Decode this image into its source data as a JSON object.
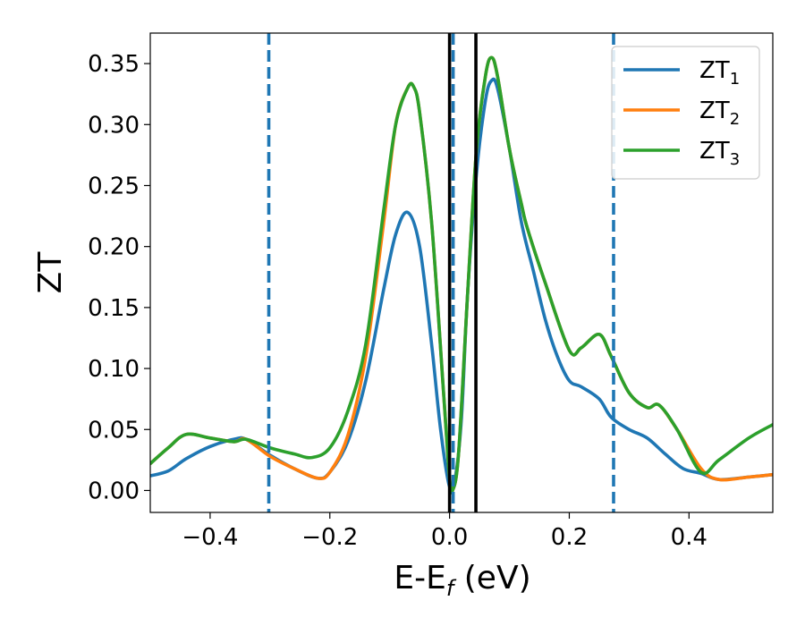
{
  "chart_data": {
    "type": "line",
    "xlabel": {
      "main": "E-E",
      "sub": "f",
      "unit": " (eV)"
    },
    "ylabel": "ZT",
    "xlim": [
      -0.5,
      0.54
    ],
    "ylim": [
      -0.018,
      0.375
    ],
    "xticks": [
      -0.4,
      -0.2,
      0.0,
      0.2,
      0.4
    ],
    "xtick_labels": [
      "−0.4",
      "−0.2",
      "0.0",
      "0.2",
      "0.4"
    ],
    "yticks": [
      0.0,
      0.05,
      0.1,
      0.15,
      0.2,
      0.25,
      0.3,
      0.35
    ],
    "ytick_labels": [
      "0.00",
      "0.05",
      "0.10",
      "0.15",
      "0.20",
      "0.25",
      "0.30",
      "0.35"
    ],
    "grid": false,
    "legend_position": "top-right",
    "series": [
      {
        "name": "ZT",
        "sub": "1",
        "color": "#1f77b4",
        "x": [
          -0.5,
          -0.47,
          -0.44,
          -0.4,
          -0.36,
          -0.34,
          -0.3,
          -0.26,
          -0.22,
          -0.2,
          -0.17,
          -0.14,
          -0.11,
          -0.09,
          -0.07,
          -0.05,
          -0.03,
          -0.015,
          0.0,
          0.01,
          0.02,
          0.03,
          0.045,
          0.06,
          0.07,
          0.08,
          0.1,
          0.12,
          0.14,
          0.16,
          0.18,
          0.2,
          0.22,
          0.25,
          0.27,
          0.3,
          0.33,
          0.36,
          0.39,
          0.42,
          0.45,
          0.5,
          0.54
        ],
        "y": [
          0.012,
          0.016,
          0.026,
          0.036,
          0.042,
          0.042,
          0.029,
          0.018,
          0.01,
          0.015,
          0.04,
          0.09,
          0.165,
          0.21,
          0.228,
          0.2,
          0.12,
          0.05,
          0.003,
          0.012,
          0.06,
          0.16,
          0.26,
          0.32,
          0.336,
          0.33,
          0.28,
          0.22,
          0.18,
          0.14,
          0.11,
          0.09,
          0.085,
          0.075,
          0.06,
          0.05,
          0.043,
          0.03,
          0.018,
          0.014,
          0.009,
          0.011,
          0.013
        ]
      },
      {
        "name": "ZT",
        "sub": "2",
        "color": "#ff7f0e",
        "x": [
          -0.5,
          -0.47,
          -0.44,
          -0.4,
          -0.36,
          -0.34,
          -0.3,
          -0.26,
          -0.22,
          -0.2,
          -0.17,
          -0.14,
          -0.11,
          -0.09,
          -0.07,
          -0.06,
          -0.05,
          -0.03,
          -0.01,
          0.0,
          0.005,
          0.015,
          0.03,
          0.045,
          0.06,
          0.07,
          0.08,
          0.1,
          0.12,
          0.13,
          0.16,
          0.2,
          0.22,
          0.25,
          0.27,
          0.3,
          0.33,
          0.35,
          0.38,
          0.42,
          0.45,
          0.5,
          0.54
        ],
        "y": [
          0.022,
          0.035,
          0.046,
          0.043,
          0.04,
          0.042,
          0.028,
          0.018,
          0.01,
          0.015,
          0.045,
          0.11,
          0.22,
          0.3,
          0.33,
          0.331,
          0.31,
          0.22,
          0.08,
          0.01,
          0.0,
          0.03,
          0.16,
          0.28,
          0.34,
          0.355,
          0.34,
          0.28,
          0.235,
          0.215,
          0.17,
          0.115,
          0.117,
          0.128,
          0.11,
          0.08,
          0.068,
          0.07,
          0.05,
          0.018,
          0.009,
          0.011,
          0.013
        ]
      },
      {
        "name": "ZT",
        "sub": "3",
        "color": "#2ca02c",
        "x": [
          -0.5,
          -0.47,
          -0.44,
          -0.4,
          -0.36,
          -0.34,
          -0.3,
          -0.26,
          -0.23,
          -0.2,
          -0.17,
          -0.14,
          -0.11,
          -0.09,
          -0.07,
          -0.06,
          -0.05,
          -0.03,
          -0.01,
          0.0,
          0.005,
          0.015,
          0.03,
          0.045,
          0.06,
          0.07,
          0.08,
          0.1,
          0.12,
          0.13,
          0.16,
          0.2,
          0.22,
          0.25,
          0.27,
          0.3,
          0.33,
          0.35,
          0.38,
          0.42,
          0.45,
          0.5,
          0.54
        ],
        "y": [
          0.022,
          0.035,
          0.046,
          0.043,
          0.04,
          0.042,
          0.035,
          0.03,
          0.027,
          0.035,
          0.065,
          0.12,
          0.23,
          0.3,
          0.33,
          0.331,
          0.31,
          0.22,
          0.08,
          0.01,
          0.0,
          0.03,
          0.16,
          0.28,
          0.34,
          0.355,
          0.34,
          0.28,
          0.235,
          0.215,
          0.17,
          0.115,
          0.117,
          0.128,
          0.11,
          0.08,
          0.068,
          0.07,
          0.05,
          0.015,
          0.025,
          0.043,
          0.054
        ]
      }
    ],
    "vertical_lines": [
      {
        "x": -0.302,
        "style": "dashed",
        "color": "#1f77b4"
      },
      {
        "x": 0.006,
        "style": "dashed",
        "color": "#1f77b4"
      },
      {
        "x": 0.274,
        "style": "dashed",
        "color": "#1f77b4"
      },
      {
        "x": 0.0,
        "style": "solid",
        "color": "#000000"
      },
      {
        "x": 0.044,
        "style": "solid",
        "color": "#000000"
      }
    ]
  }
}
